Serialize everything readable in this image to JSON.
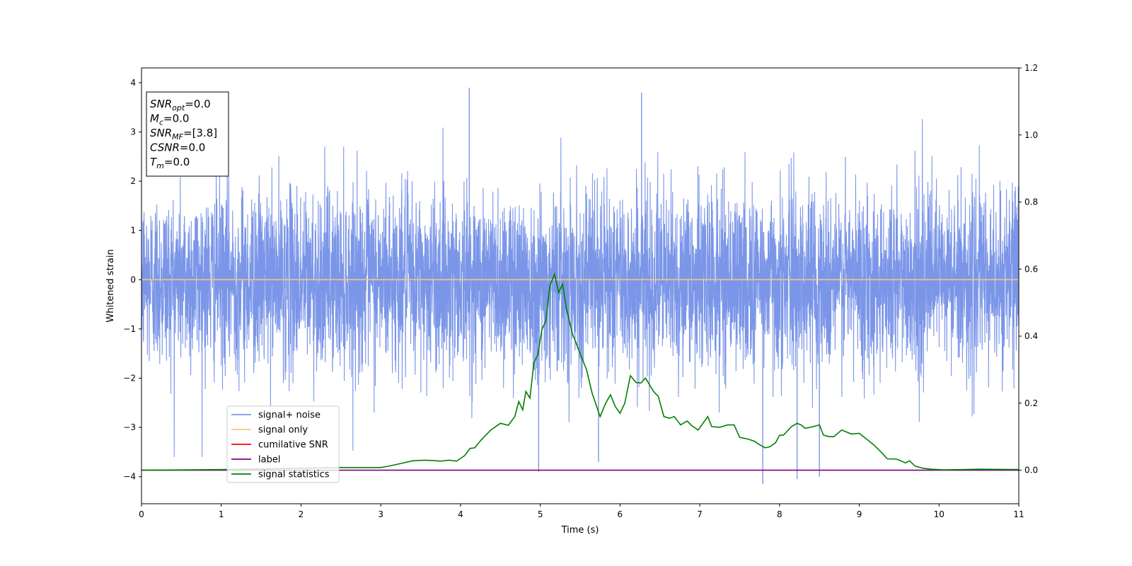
{
  "chart_data": {
    "type": "line",
    "xlabel": "Time (s)",
    "ylabel": "Whitened strain",
    "xlim": [
      0,
      11
    ],
    "ylim": [
      -4.55,
      4.3
    ],
    "y2lim": [
      -0.1,
      1.2
    ],
    "x_ticks": [
      0,
      1,
      2,
      3,
      4,
      5,
      6,
      7,
      8,
      9,
      10,
      11
    ],
    "y_ticks": [
      -4,
      -3,
      -2,
      -1,
      0,
      1,
      2,
      3,
      4
    ],
    "y2_ticks": [
      0.0,
      0.2,
      0.4,
      0.6,
      0.8,
      1.0,
      1.2
    ],
    "grid": false,
    "legend_position": "lower-left",
    "info_box": [
      {
        "symbol": "SNR",
        "sub": "opt",
        "text": "=0.0"
      },
      {
        "symbol": "M",
        "sub": "c",
        "text": "=0.0"
      },
      {
        "symbol": "SNR",
        "sub": "MF",
        "text": "=[3.8]"
      },
      {
        "symbol": "CSNR",
        "sub": "",
        "text": "=0.0"
      },
      {
        "symbol": "T",
        "sub": "m",
        "text": "=0.0"
      }
    ],
    "series": [
      {
        "name": "signal+ noise",
        "color": "#7b96e8",
        "axis": "left",
        "kind": "noise",
        "spread_std": 0.9,
        "spike_times": [
          4.11,
          4.98,
          5.73,
          6.27,
          7.79,
          8.22,
          8.5
        ],
        "spike_values": [
          3.9,
          -3.9,
          -3.7,
          3.8,
          -4.15,
          -4.05,
          -4.0
        ]
      },
      {
        "name": "signal only",
        "color": "#f5c77e",
        "axis": "left",
        "x": [
          0,
          11
        ],
        "y": [
          0,
          0
        ]
      },
      {
        "name": "cumilative SNR",
        "color": "#ff0000",
        "axis": "right",
        "x": [],
        "y": []
      },
      {
        "name": "label",
        "color": "#800080",
        "axis": "right",
        "x": [
          0,
          11
        ],
        "y": [
          0,
          0
        ]
      },
      {
        "name": "signal statistics",
        "color": "#008000",
        "axis": "right",
        "x": [
          0,
          1,
          2,
          2.5,
          3,
          3.1,
          3.25,
          3.4,
          3.55,
          3.7,
          3.75,
          3.85,
          3.95,
          4.0,
          4.05,
          4.12,
          4.18,
          4.25,
          4.38,
          4.5,
          4.6,
          4.68,
          4.73,
          4.78,
          4.82,
          4.87,
          4.92,
          4.97,
          5.02,
          5.07,
          5.12,
          5.18,
          5.23,
          5.28,
          5.33,
          5.4,
          5.48,
          5.58,
          5.65,
          5.75,
          5.82,
          5.88,
          5.94,
          6.0,
          6.06,
          6.13,
          6.2,
          6.26,
          6.32,
          6.42,
          6.48,
          6.55,
          6.62,
          6.68,
          6.76,
          6.84,
          6.9,
          6.98,
          7.1,
          7.15,
          7.25,
          7.35,
          7.43,
          7.5,
          7.6,
          7.68,
          7.75,
          7.82,
          7.88,
          7.95,
          8.0,
          8.05,
          8.15,
          8.22,
          8.27,
          8.32,
          8.38,
          8.42,
          8.5,
          8.55,
          8.62,
          8.68,
          8.78,
          8.9,
          9.0,
          9.08,
          9.18,
          9.27,
          9.35,
          9.47,
          9.58,
          9.63,
          9.7,
          9.8,
          9.9,
          10.05,
          10.3,
          10.5,
          11
        ],
        "y": [
          0.0,
          0.002,
          0.006,
          0.008,
          0.008,
          0.012,
          0.02,
          0.028,
          0.03,
          0.028,
          0.027,
          0.03,
          0.027,
          0.035,
          0.043,
          0.065,
          0.067,
          0.088,
          0.12,
          0.14,
          0.134,
          0.16,
          0.205,
          0.18,
          0.235,
          0.215,
          0.32,
          0.345,
          0.42,
          0.445,
          0.55,
          0.585,
          0.53,
          0.555,
          0.48,
          0.41,
          0.36,
          0.3,
          0.23,
          0.16,
          0.2,
          0.225,
          0.19,
          0.17,
          0.2,
          0.282,
          0.262,
          0.26,
          0.275,
          0.235,
          0.22,
          0.16,
          0.155,
          0.16,
          0.135,
          0.147,
          0.133,
          0.12,
          0.16,
          0.13,
          0.128,
          0.135,
          0.135,
          0.098,
          0.093,
          0.087,
          0.076,
          0.067,
          0.07,
          0.082,
          0.104,
          0.105,
          0.13,
          0.14,
          0.135,
          0.125,
          0.128,
          0.13,
          0.135,
          0.105,
          0.1,
          0.1,
          0.12,
          0.108,
          0.11,
          0.095,
          0.076,
          0.055,
          0.034,
          0.033,
          0.022,
          0.028,
          0.012,
          0.006,
          0.003,
          0.001,
          0.002,
          0.003,
          0.002
        ]
      }
    ]
  }
}
